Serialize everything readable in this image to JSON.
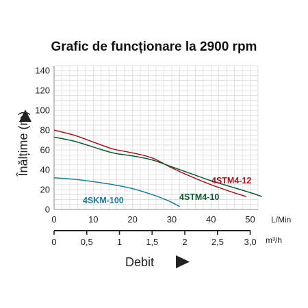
{
  "chart_data": {
    "type": "line",
    "title": "Grafic de funcționare la 2900 rpm",
    "ylabel": "Înălțime (m)",
    "xlabel": "Debit",
    "x_unit_primary": "L/Min",
    "x_unit_secondary": "m³/h",
    "xlim": [
      0,
      52
    ],
    "ylim": [
      0,
      145
    ],
    "x_ticks": [
      "0",
      "10",
      "20",
      "30",
      "40",
      "50"
    ],
    "y_ticks": [
      "0",
      "20",
      "40",
      "60",
      "80",
      "100",
      "120",
      "140"
    ],
    "x2_ticks": [
      "0",
      "0,5",
      "1",
      "1,5",
      "2",
      "2,5",
      "3,0"
    ],
    "grid": true,
    "series": [
      {
        "name": "4STM4-12",
        "color": "#a0171f",
        "x": [
          0,
          5,
          10,
          15,
          20,
          25,
          30,
          35,
          40,
          45,
          49
        ],
        "y": [
          80,
          75,
          68,
          61,
          57,
          52,
          42,
          33,
          25,
          18,
          13
        ]
      },
      {
        "name": "4STM4-10",
        "color": "#0f5a30",
        "x": [
          0,
          5,
          10,
          15,
          20,
          25,
          30,
          35,
          40,
          45,
          50,
          53
        ],
        "y": [
          73,
          69,
          63,
          57,
          54,
          50,
          43,
          36,
          29,
          23,
          17,
          13
        ]
      },
      {
        "name": "4SKM-100",
        "color": "#1a7d9e",
        "x": [
          0,
          5,
          10,
          15,
          20,
          25,
          29,
          32
        ],
        "y": [
          32,
          30.5,
          28,
          25,
          21,
          15,
          9,
          3
        ]
      }
    ]
  }
}
